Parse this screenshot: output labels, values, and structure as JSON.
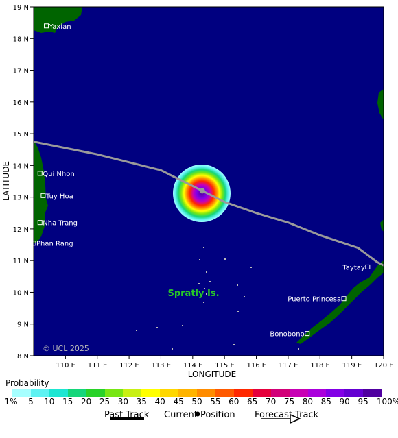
{
  "axes": {
    "xlabel": "LONGITUDE",
    "ylabel": "LATITUDE",
    "lon_ticks": [
      "110 E",
      "111 E",
      "112 E",
      "113 E",
      "114 E",
      "115 E",
      "116 E",
      "117 E",
      "118 E",
      "119 E",
      "120 E"
    ],
    "lat_ticks": [
      "8 N",
      "9 N",
      "10 N",
      "11 N",
      "12 N",
      "13 N",
      "14 N",
      "15 N",
      "16 N",
      "17 N",
      "18 N",
      "19 N"
    ],
    "lon_range": [
      109,
      120
    ],
    "lat_range": [
      8,
      19
    ]
  },
  "places": [
    {
      "name": "Yaxian",
      "lon": 109.4,
      "lat": 18.4
    },
    {
      "name": "Qui Nhon",
      "lon": 109.2,
      "lat": 13.75
    },
    {
      "name": "Tuy Hoa",
      "lon": 109.3,
      "lat": 13.05
    },
    {
      "name": "Nha Trang",
      "lon": 109.2,
      "lat": 12.2
    },
    {
      "name": "Phan Rang",
      "lon": 109.0,
      "lat": 11.55
    },
    {
      "name": "Taytay",
      "lon": 119.5,
      "lat": 10.8
    },
    {
      "name": "Puerto Princesa",
      "lon": 118.75,
      "lat": 9.8
    },
    {
      "name": "Bonobono",
      "lon": 117.6,
      "lat": 8.7
    }
  ],
  "region_label": "Spratly Is.",
  "copyright": "© UCL 2025",
  "legend": {
    "title": "Probability",
    "tick_labels": [
      "1%",
      "5",
      "10",
      "15",
      "20",
      "25",
      "30",
      "35",
      "40",
      "45",
      "50",
      "55",
      "60",
      "65",
      "70",
      "75",
      "80",
      "85",
      "90",
      "95",
      "100%"
    ],
    "colors": [
      "#a6ffff",
      "#5ef2f2",
      "#1ee6d2",
      "#14d67a",
      "#28d228",
      "#78e614",
      "#c8f014",
      "#ffff00",
      "#ffd700",
      "#ffb400",
      "#ff8c00",
      "#ff5a00",
      "#ff2800",
      "#e6003c",
      "#d20078",
      "#c800b4",
      "#aa00dc",
      "#8200e6",
      "#6400d2",
      "#5000a0"
    ]
  },
  "storm": {
    "lon": 114.3,
    "lat": 13.2
  },
  "forecast_track": [
    [
      109,
      14.75
    ],
    [
      111,
      14.35
    ],
    [
      113,
      13.85
    ],
    [
      114.3,
      13.2
    ],
    [
      115,
      12.85
    ],
    [
      116,
      12.5
    ],
    [
      117,
      12.2
    ],
    [
      118,
      11.8
    ],
    [
      119.2,
      11.4
    ],
    [
      119.8,
      10.95
    ],
    [
      120,
      10.85
    ]
  ],
  "track_key": {
    "past": "Past Track",
    "current": "Current Position",
    "forecast": "Forecast Track"
  }
}
